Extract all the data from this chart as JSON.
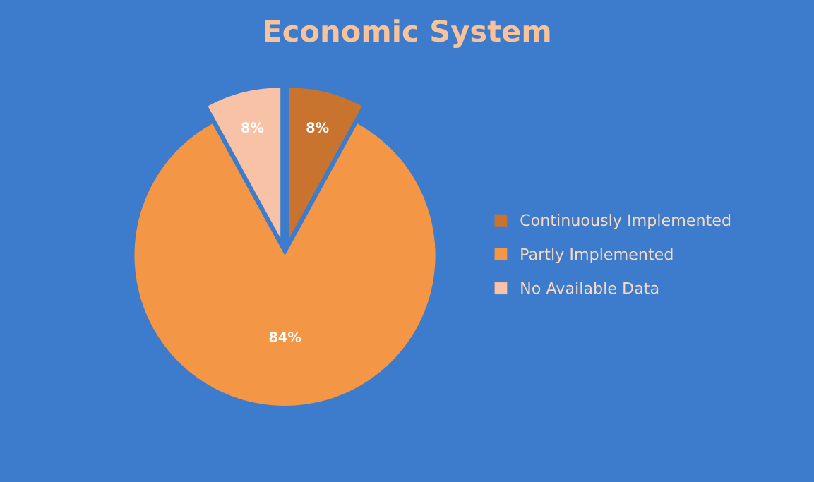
{
  "chart_data": {
    "type": "pie",
    "title": "Economic System",
    "categories": [
      "Continuously Implemented",
      "Partly Implemented",
      "No Available Data"
    ],
    "values": [
      8,
      84,
      8
    ],
    "colors": [
      "#c8742f",
      "#f39645",
      "#f7c2a6"
    ],
    "value_labels": [
      "8%",
      "84%",
      "8%"
    ],
    "legend": "right"
  }
}
